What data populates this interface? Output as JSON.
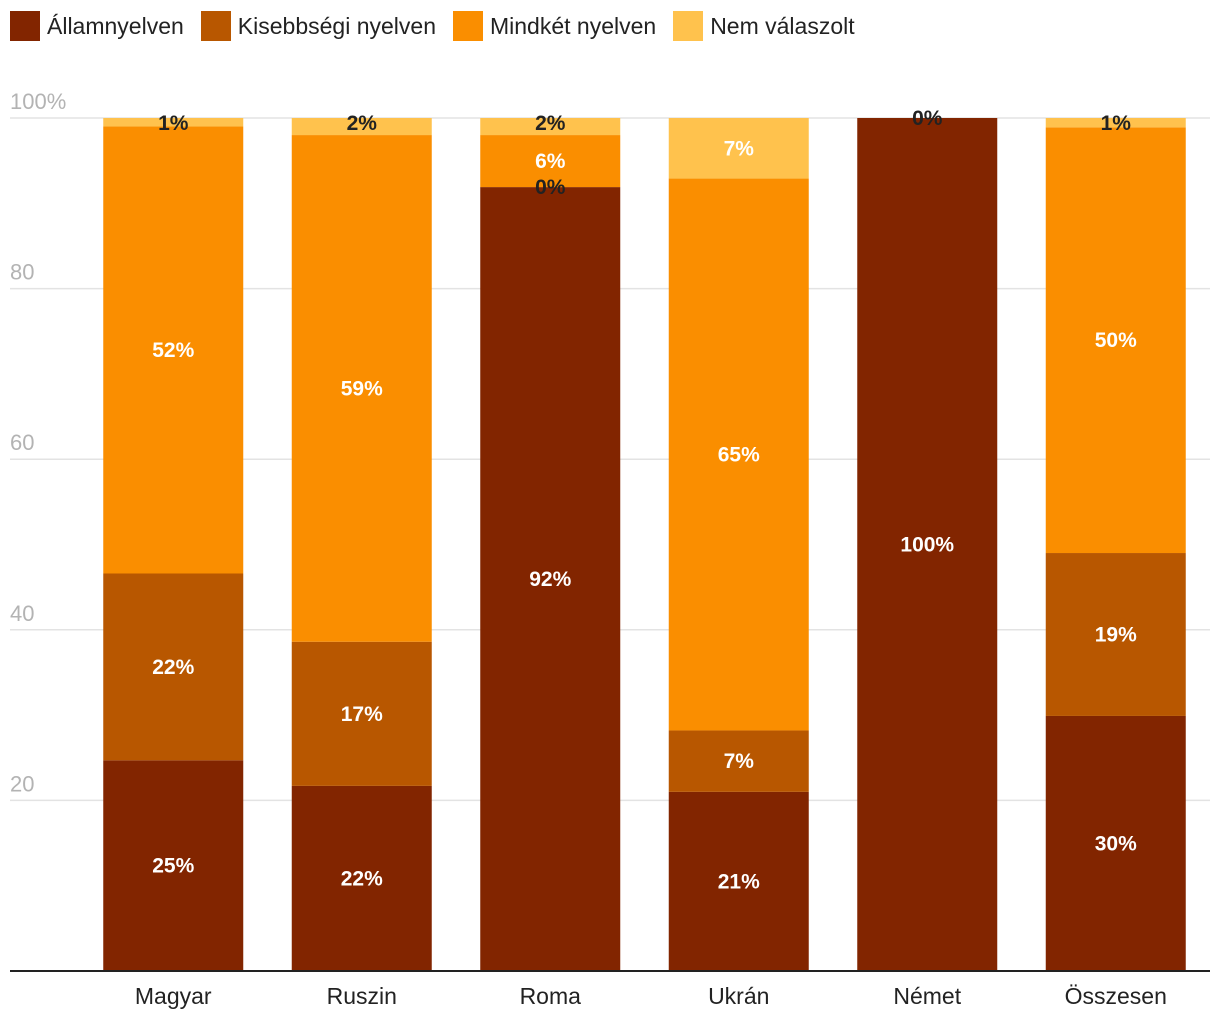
{
  "chart_data": {
    "type": "bar",
    "stacked": true,
    "title": "",
    "xlabel": "",
    "ylabel": "",
    "ylim": [
      0,
      100
    ],
    "yticks": [
      20,
      40,
      60,
      80,
      100
    ],
    "ytick_labels": [
      "20",
      "40",
      "60",
      "80",
      "100%"
    ],
    "grid": true,
    "legend_position": "top-left",
    "categories": [
      "Magyar",
      "Ruszin",
      "Roma",
      "Ukrán",
      "Német",
      "Összesen"
    ],
    "series": [
      {
        "name": "Államnyelven",
        "color": "#822500",
        "values": [
          24.7,
          21.7,
          91.9,
          21.0,
          100,
          29.9
        ],
        "labels": [
          "25%",
          "22%",
          "92%",
          "21%",
          "100%",
          "30%"
        ]
      },
      {
        "name": "Kisebbségi nyelven",
        "color": "#b85700",
        "values": [
          21.9,
          16.9,
          0,
          7.2,
          0,
          19.1
        ],
        "labels": [
          "22%",
          "17%",
          "0%",
          "7%",
          "",
          "19%"
        ]
      },
      {
        "name": "Mindkét nyelven",
        "color": "#fa8e00",
        "values": [
          52.4,
          59.4,
          6.1,
          64.7,
          0,
          49.9
        ],
        "labels": [
          "52%",
          "59%",
          "6%",
          "65%",
          "",
          "50%"
        ]
      },
      {
        "name": "Nem válaszolt",
        "color": "#ffc24d",
        "values": [
          1.0,
          2.0,
          2.0,
          7.1,
          0,
          1.1
        ],
        "labels": [
          "1%",
          "2%",
          "2%",
          "7%",
          "0%",
          "1%"
        ]
      }
    ]
  }
}
